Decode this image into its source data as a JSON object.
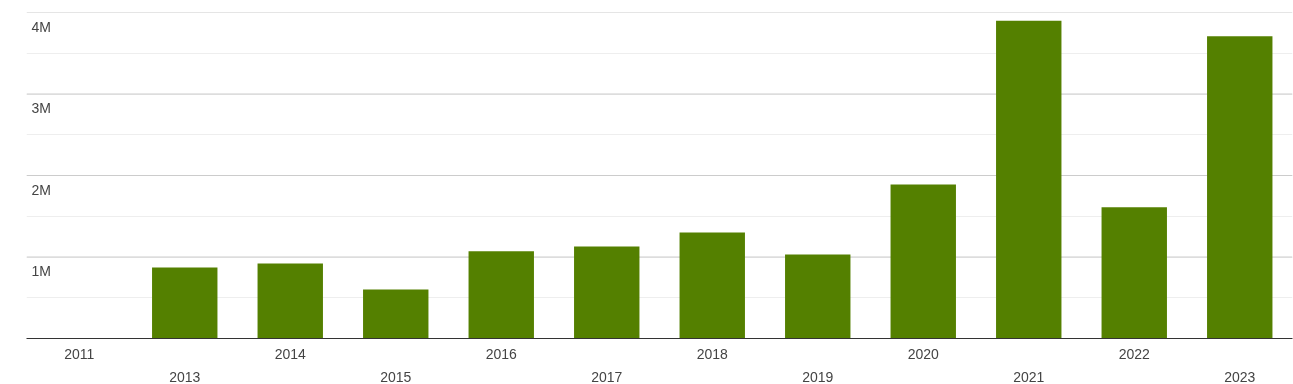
{
  "chart_data": {
    "type": "bar",
    "categories": [
      "2011",
      "2013",
      "2014",
      "2015",
      "2016",
      "2017",
      "2018",
      "2019",
      "2020",
      "2021",
      "2022",
      "2023"
    ],
    "values": [
      0,
      870000,
      920000,
      600000,
      1070000,
      1130000,
      1300000,
      1030000,
      1890000,
      3900000,
      1610000,
      3710000
    ],
    "color": "#548000",
    "ylim": [
      0,
      4000000
    ],
    "yticks": [
      {
        "value": 0,
        "label": null
      },
      {
        "value": 500000,
        "label": null
      },
      {
        "value": 1000000,
        "label": "1M"
      },
      {
        "value": 1500000,
        "label": null
      },
      {
        "value": 2000000,
        "label": "2M"
      },
      {
        "value": 2500000,
        "label": null
      },
      {
        "value": 3000000,
        "label": "3M"
      },
      {
        "value": 3500000,
        "label": null
      },
      {
        "value": 4000000,
        "label": "4M"
      }
    ],
    "grid": "y"
  }
}
